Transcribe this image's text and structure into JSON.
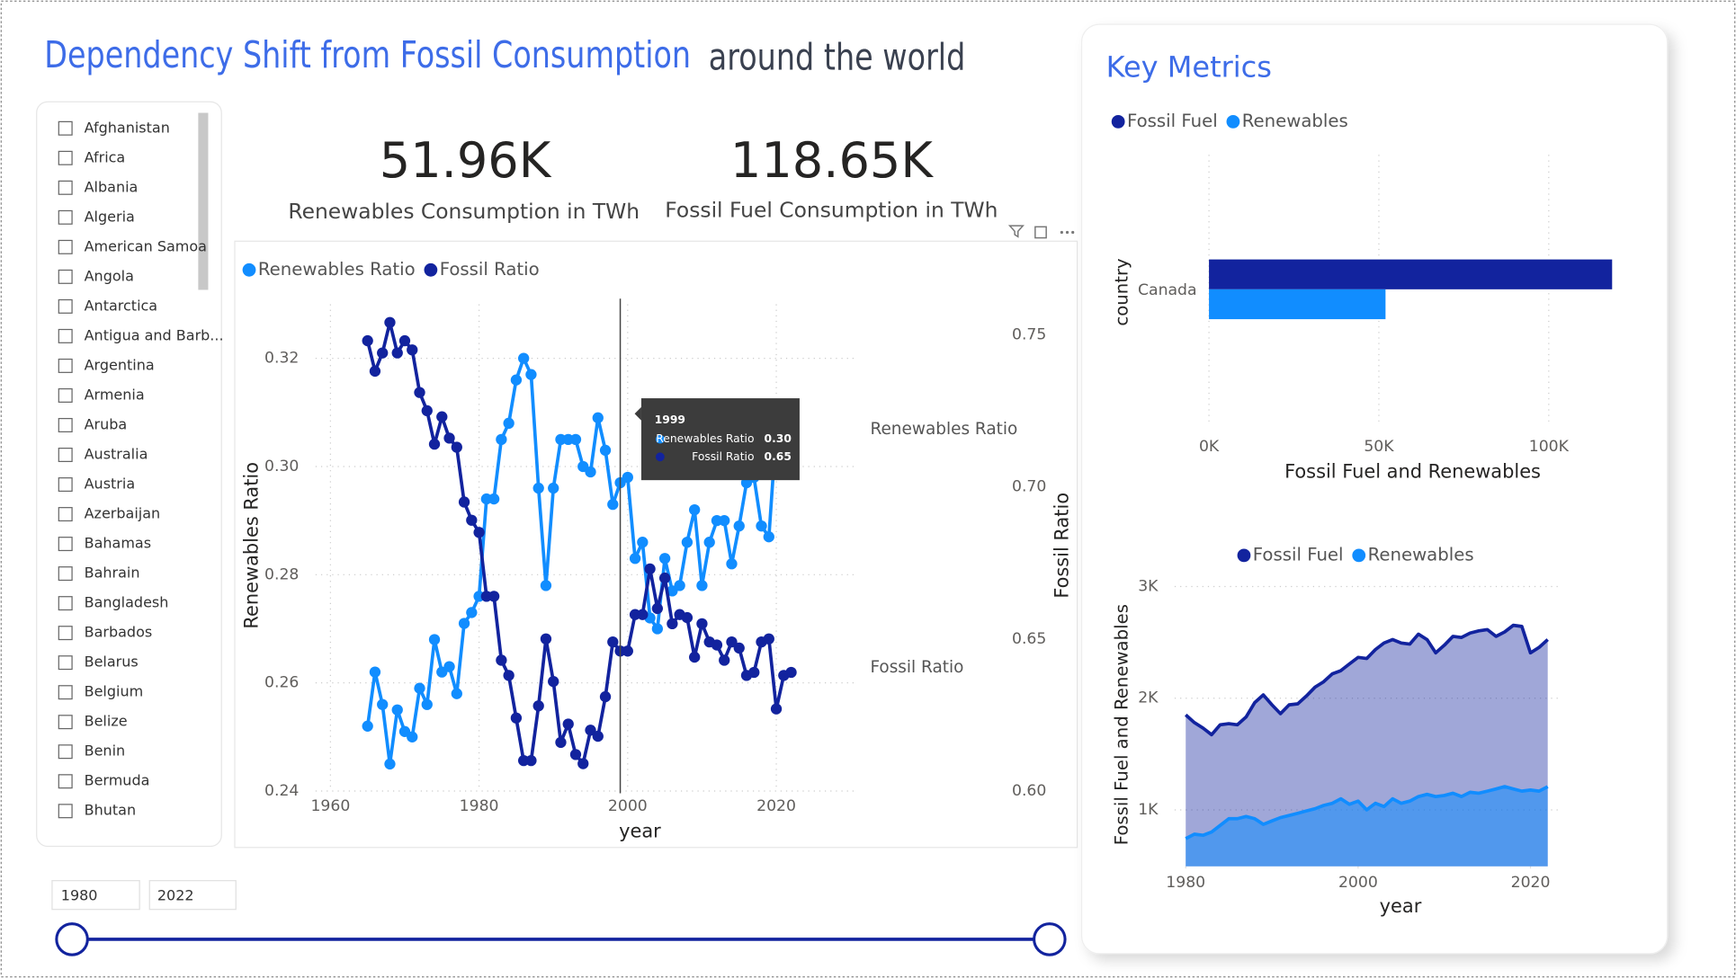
{
  "header": {
    "title": "Dependency Shift from Fossil Consumption",
    "subtitle": "around the world"
  },
  "slicer": {
    "items": [
      "Afghanistan",
      "Africa",
      "Albania",
      "Algeria",
      "American Samoa",
      "Angola",
      "Antarctica",
      "Antigua and Barb...",
      "Argentina",
      "Armenia",
      "Aruba",
      "Australia",
      "Austria",
      "Azerbaijan",
      "Bahamas",
      "Bahrain",
      "Bangladesh",
      "Barbados",
      "Belarus",
      "Belgium",
      "Belize",
      "Benin",
      "Bermuda",
      "Bhutan"
    ]
  },
  "date_range": {
    "start": 1980,
    "end": 2022
  },
  "cards": [
    {
      "value": "51.96K",
      "label": "Renewables Consumption in TWh"
    },
    {
      "value": "118.65K",
      "label": "Fossil Fuel Consumption in TWh"
    }
  ],
  "panel": {
    "title": "Key Metrics"
  },
  "chart_data": [
    {
      "type": "line",
      "x": [
        1965,
        1966,
        1967,
        1968,
        1969,
        1970,
        1971,
        1972,
        1973,
        1974,
        1975,
        1976,
        1977,
        1978,
        1979,
        1980,
        1981,
        1982,
        1983,
        1984,
        1985,
        1986,
        1987,
        1988,
        1989,
        1990,
        1991,
        1992,
        1993,
        1994,
        1995,
        1996,
        1997,
        1998,
        1999,
        2000,
        2001,
        2002,
        2003,
        2004,
        2005,
        2006,
        2007,
        2008,
        2009,
        2010,
        2011,
        2012,
        2013,
        2014,
        2015,
        2016,
        2017,
        2018,
        2019,
        2020,
        2021,
        2022
      ],
      "series": [
        {
          "name": "Renewables Ratio",
          "color": "#118dff",
          "values": [
            0.252,
            0.262,
            0.256,
            0.245,
            0.255,
            0.251,
            0.25,
            0.259,
            0.256,
            0.268,
            0.262,
            0.263,
            0.258,
            0.271,
            0.273,
            0.276,
            0.294,
            0.294,
            0.305,
            0.308,
            0.316,
            0.32,
            0.317,
            0.296,
            0.278,
            0.296,
            0.305,
            0.305,
            0.305,
            0.3,
            0.299,
            0.309,
            0.303,
            0.293,
            0.297,
            0.298,
            0.283,
            0.286,
            0.272,
            0.27,
            0.283,
            0.277,
            0.278,
            0.286,
            0.292,
            0.278,
            0.286,
            0.29,
            0.29,
            0.282,
            0.289,
            0.297,
            0.298,
            0.289,
            0.287,
            0.307,
            0.306,
            null
          ]
        },
        {
          "name": "Fossil Ratio",
          "color": "#12239e",
          "axis": "y2",
          "values": [
            0.748,
            0.738,
            0.744,
            0.754,
            0.744,
            0.748,
            0.745,
            0.731,
            0.725,
            0.714,
            0.723,
            0.716,
            0.713,
            0.695,
            0.689,
            0.685,
            0.664,
            0.664,
            0.643,
            0.638,
            0.624,
            0.61,
            0.61,
            0.628,
            0.65,
            0.636,
            0.616,
            0.622,
            0.612,
            0.609,
            0.62,
            0.618,
            0.631,
            0.649,
            0.646,
            0.646,
            0.658,
            0.658,
            0.673,
            0.66,
            0.67,
            0.655,
            0.658,
            0.657,
            0.644,
            0.655,
            0.649,
            0.648,
            0.643,
            0.649,
            0.647,
            0.638,
            0.639,
            0.649,
            0.65,
            0.627,
            0.638,
            0.639
          ]
        }
      ],
      "xlim": [
        1958,
        2031
      ],
      "xticks": [
        1960,
        1980,
        2000,
        2020
      ],
      "ylim": [
        0.24,
        0.33
      ],
      "yticks": [
        0.24,
        0.26,
        0.28,
        {
          "value": 0.3,
          "label": "0.30"
        },
        0.32
      ],
      "y2lim": [
        0.6,
        0.76
      ],
      "y2ticks": [
        {
          "value": 0.6,
          "label": "0.60"
        },
        0.65,
        {
          "value": 0.7,
          "label": "0.70"
        },
        0.75
      ],
      "xlabel": "year",
      "ylabel": "Renewables Ratio",
      "y2label": "Fossil Ratio",
      "grid": true,
      "legend": "top-left",
      "annotations": [
        "Renewables Ratio",
        "Fossil Ratio"
      ],
      "tooltip": {
        "x": 1999,
        "items": [
          {
            "name": "Renewables Ratio",
            "value": "0.30"
          },
          {
            "name": "Fossil Ratio",
            "value": "0.65"
          }
        ]
      }
    },
    {
      "type": "bar",
      "orientation": "horizontal",
      "categories": [
        "Canada"
      ],
      "series": [
        {
          "name": "Fossil Fuel",
          "color": "#12239e",
          "values": [
            118650
          ]
        },
        {
          "name": "Renewables",
          "color": "#118dff",
          "values": [
            51960
          ]
        }
      ],
      "xlim": [
        0,
        130000
      ],
      "xticks": [
        {
          "value": 0,
          "label": "0K"
        },
        {
          "value": 50000,
          "label": "50K"
        },
        {
          "value": 100000,
          "label": "100K"
        }
      ],
      "xlabel": "Fossil Fuel and Renewables",
      "ylabel": "country",
      "grid": true,
      "legend": "top-left"
    },
    {
      "type": "area",
      "x": [
        1980,
        1981,
        1982,
        1983,
        1984,
        1985,
        1986,
        1987,
        1988,
        1989,
        1990,
        1991,
        1992,
        1993,
        1994,
        1995,
        1996,
        1997,
        1998,
        1999,
        2000,
        2001,
        2002,
        2003,
        2004,
        2005,
        2006,
        2007,
        2008,
        2009,
        2010,
        2011,
        2012,
        2013,
        2014,
        2015,
        2016,
        2017,
        2018,
        2019,
        2020,
        2021,
        2022
      ],
      "series": [
        {
          "name": "Fossil Fuel",
          "color": "#12239e",
          "values": [
            1851,
            1782,
            1733,
            1673,
            1762,
            1772,
            1762,
            1832,
            1960,
            2030,
            1941,
            1861,
            1941,
            1950,
            2020,
            2099,
            2148,
            2218,
            2247,
            2307,
            2366,
            2356,
            2435,
            2495,
            2525,
            2495,
            2485,
            2574,
            2525,
            2406,
            2475,
            2554,
            2544,
            2584,
            2604,
            2614,
            2554,
            2594,
            2653,
            2643,
            2406,
            2455,
            2525
          ]
        },
        {
          "name": "Renewables",
          "color": "#118dff",
          "values": [
            743,
            782,
            772,
            802,
            861,
            921,
            921,
            941,
            921,
            871,
            901,
            931,
            950,
            970,
            990,
            1010,
            1040,
            1059,
            1099,
            1050,
            1079,
            1000,
            1059,
            1030,
            1099,
            1059,
            1079,
            1119,
            1139,
            1119,
            1129,
            1149,
            1119,
            1158,
            1149,
            1168,
            1188,
            1208,
            1188,
            1168,
            1178,
            1168,
            1208
          ]
        }
      ],
      "xlim": [
        1980,
        2022
      ],
      "xticks": [
        1980,
        2000,
        2020
      ],
      "ylim": [
        495,
        3200
      ],
      "yticks": [
        {
          "value": 1000,
          "label": "1K"
        },
        {
          "value": 2000,
          "label": "2K"
        },
        {
          "value": 3000,
          "label": "3K"
        }
      ],
      "xlabel": "year",
      "ylabel": "Fossil Fuel and Renewables",
      "grid": true,
      "legend": "top-center"
    }
  ]
}
